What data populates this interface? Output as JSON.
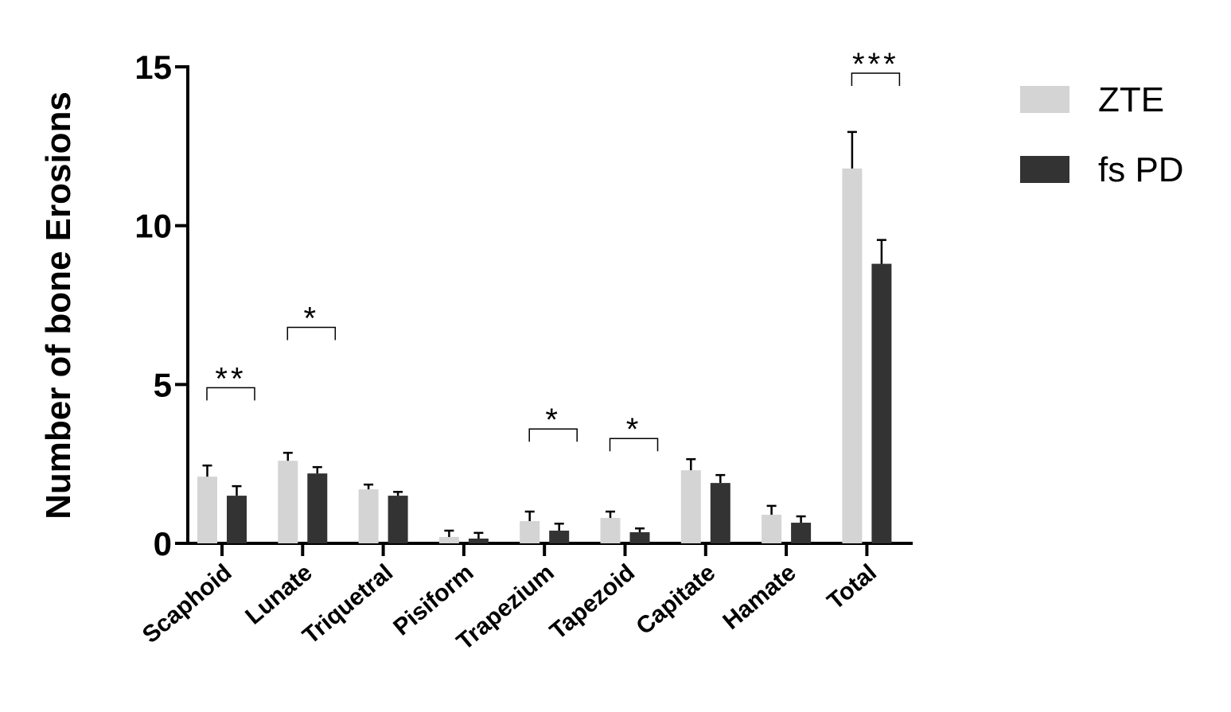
{
  "chart_data": {
    "type": "bar",
    "title": "",
    "xlabel": "",
    "ylabel": "Number of bone Erosions",
    "ylim": [
      0,
      15
    ],
    "yticks": [
      0,
      5,
      10,
      15
    ],
    "categories": [
      "Scaphoid",
      "Lunate",
      "Triquetral",
      "Pisiform",
      "Trapezium",
      "Tapezoid",
      "Capitate",
      "Hamate",
      "Total"
    ],
    "series": [
      {
        "name": "ZTE",
        "color": "#d4d4d4",
        "values": [
          2.1,
          2.6,
          1.7,
          0.2,
          0.7,
          0.8,
          2.3,
          0.9,
          11.8
        ],
        "errors": [
          0.35,
          0.25,
          0.15,
          0.2,
          0.3,
          0.2,
          0.35,
          0.28,
          1.15
        ]
      },
      {
        "name": "fs PD",
        "color": "#333333",
        "values": [
          1.5,
          2.2,
          1.5,
          0.15,
          0.4,
          0.35,
          1.9,
          0.65,
          8.8
        ],
        "errors": [
          0.3,
          0.2,
          0.12,
          0.18,
          0.22,
          0.12,
          0.25,
          0.2,
          0.75
        ]
      }
    ],
    "significance": [
      {
        "category": "Scaphoid",
        "label": "**"
      },
      {
        "category": "Lunate",
        "label": "*"
      },
      {
        "category": "Trapezium",
        "label": "*"
      },
      {
        "category": "Tapezoid",
        "label": "*"
      },
      {
        "category": "Total",
        "label": "***"
      }
    ],
    "legend": {
      "position": "top-right"
    },
    "grid": false
  }
}
